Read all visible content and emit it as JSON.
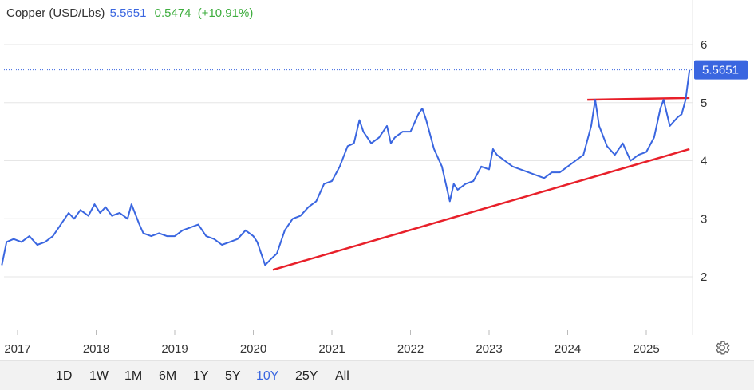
{
  "header": {
    "title": "Copper (USD/Lbs)",
    "price": "5.5651",
    "change": "0.5474",
    "change_pct": "(+10.91%)"
  },
  "price_tag": "5.5651",
  "range_buttons": [
    {
      "label": "1D",
      "active": false
    },
    {
      "label": "1W",
      "active": false
    },
    {
      "label": "1M",
      "active": false
    },
    {
      "label": "6M",
      "active": false
    },
    {
      "label": "1Y",
      "active": false
    },
    {
      "label": "5Y",
      "active": false
    },
    {
      "label": "10Y",
      "active": true
    },
    {
      "label": "25Y",
      "active": false
    },
    {
      "label": "All",
      "active": false
    }
  ],
  "colors": {
    "line": "#3a66e0",
    "trendline": "#e8202a",
    "price_tag_bg": "#3a66e0",
    "up": "#3fae3f"
  },
  "icons": {
    "settings": "gear-icon"
  },
  "chart_data": {
    "type": "line",
    "title": "Copper (USD/Lbs)",
    "xlabel": "",
    "ylabel": "",
    "x_ticks": [
      "2017",
      "2018",
      "2019",
      "2020",
      "2021",
      "2022",
      "2023",
      "2024",
      "2025"
    ],
    "y_ticks": [
      2,
      3,
      4,
      5,
      6
    ],
    "grid": "horizontal",
    "last_value": 5.5651,
    "series": [
      {
        "x": [
          2016.8,
          2016.86,
          2016.95,
          2017.05,
          2017.15,
          2017.25,
          2017.35,
          2017.45,
          2017.55,
          2017.65,
          2017.72,
          2017.8,
          2017.9,
          2017.98,
          2018.05,
          2018.12,
          2018.2,
          2018.3,
          2018.4,
          2018.45,
          2018.55,
          2018.6,
          2018.7,
          2018.8,
          2018.9,
          2019.0,
          2019.1,
          2019.2,
          2019.3,
          2019.4,
          2019.5,
          2019.6,
          2019.7,
          2019.8,
          2019.9,
          2020.0,
          2020.05,
          2020.15,
          2020.22,
          2020.3,
          2020.4,
          2020.5,
          2020.6,
          2020.7,
          2020.8,
          2020.9,
          2021.0,
          2021.1,
          2021.2,
          2021.28,
          2021.35,
          2021.4,
          2021.5,
          2021.6,
          2021.7,
          2021.75,
          2021.8,
          2021.9,
          2022.0,
          2022.1,
          2022.15,
          2022.2,
          2022.3,
          2022.4,
          2022.5,
          2022.55,
          2022.6,
          2022.7,
          2022.8,
          2022.9,
          2023.0,
          2023.05,
          2023.1,
          2023.2,
          2023.3,
          2023.4,
          2023.5,
          2023.6,
          2023.7,
          2023.8,
          2023.9,
          2024.0,
          2024.1,
          2024.2,
          2024.3,
          2024.35,
          2024.4,
          2024.5,
          2024.6,
          2024.7,
          2024.8,
          2024.9,
          2025.0,
          2025.1,
          2025.18,
          2025.22,
          2025.3,
          2025.4,
          2025.45,
          2025.5,
          2025.55
        ],
        "y": [
          2.2,
          2.6,
          2.65,
          2.6,
          2.7,
          2.55,
          2.6,
          2.7,
          2.9,
          3.1,
          3.0,
          3.15,
          3.05,
          3.25,
          3.1,
          3.2,
          3.05,
          3.1,
          3.0,
          3.25,
          2.9,
          2.75,
          2.7,
          2.75,
          2.7,
          2.7,
          2.8,
          2.85,
          2.9,
          2.7,
          2.65,
          2.55,
          2.6,
          2.65,
          2.8,
          2.7,
          2.6,
          2.2,
          2.3,
          2.4,
          2.8,
          3.0,
          3.05,
          3.2,
          3.3,
          3.6,
          3.65,
          3.9,
          4.25,
          4.3,
          4.7,
          4.5,
          4.3,
          4.4,
          4.6,
          4.3,
          4.4,
          4.5,
          4.5,
          4.8,
          4.9,
          4.7,
          4.2,
          3.9,
          3.3,
          3.6,
          3.5,
          3.6,
          3.65,
          3.9,
          3.85,
          4.2,
          4.1,
          4.0,
          3.9,
          3.85,
          3.8,
          3.75,
          3.7,
          3.8,
          3.8,
          3.9,
          4.0,
          4.1,
          4.6,
          5.05,
          4.6,
          4.25,
          4.1,
          4.3,
          4.0,
          4.1,
          4.15,
          4.4,
          4.9,
          5.05,
          4.6,
          4.75,
          4.8,
          5.05,
          5.5651
        ]
      }
    ],
    "trendlines": [
      {
        "x": [
          2020.25,
          2025.55
        ],
        "y": [
          2.12,
          4.2
        ]
      },
      {
        "x": [
          2024.25,
          2025.55
        ],
        "y": [
          5.05,
          5.08
        ]
      }
    ]
  }
}
